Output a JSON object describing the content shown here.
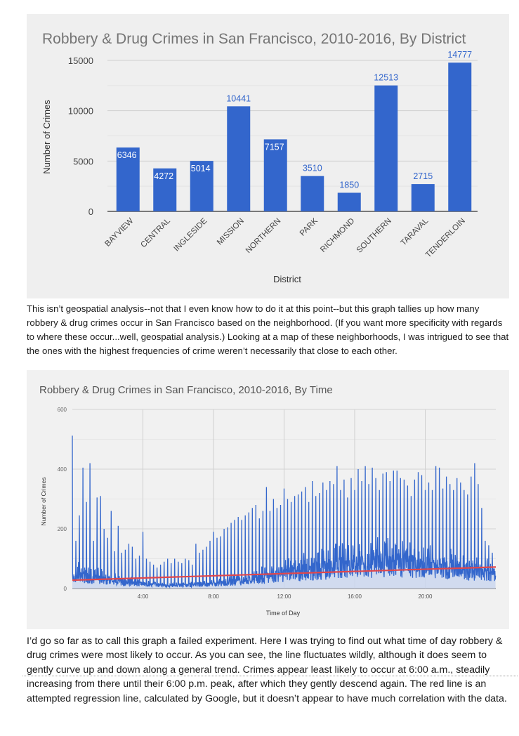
{
  "chart_data": [
    {
      "type": "bar",
      "title": "Robbery & Drug Crimes in San Francisco, 2010-2016, By District",
      "xlabel": "District",
      "ylabel": "Number of Crimes",
      "categories": [
        "BAYVIEW",
        "CENTRAL",
        "INGLESIDE",
        "MISSION",
        "NORTHERN",
        "PARK",
        "RICHMOND",
        "SOUTHERN",
        "TARAVAL",
        "TENDERLOIN"
      ],
      "values": [
        6346,
        4272,
        5014,
        10441,
        7157,
        3510,
        1850,
        12513,
        2715,
        14777
      ],
      "ylim": [
        0,
        15000
      ],
      "yticks": [
        "0",
        "5000",
        "10000",
        "15000"
      ],
      "grid": true,
      "bar_color": "#3366cc",
      "label_color_outside": "#3366cc",
      "label_color_inside": "#ffffff"
    },
    {
      "type": "line",
      "title": "Robbery & Drug Crimes in San Francisco, 2010-2016, By Time",
      "xlabel": "Time of Day",
      "ylabel": "Number of Crimes",
      "xticks": [
        "4:00",
        "8:00",
        "12:00",
        "16:00",
        "20:00"
      ],
      "yticks": [
        "0",
        "200",
        "400",
        "600"
      ],
      "ylim": [
        0,
        600
      ],
      "xlim_minutes": [
        0,
        1440
      ],
      "line_color": "#3366cc",
      "regression_color": "#e0474c",
      "regression": {
        "start": 28,
        "end": 72
      },
      "hourly_peaks": [
        {
          "hour": 0,
          "values": [
            512,
            160,
            245,
            405,
            290
          ]
        },
        {
          "hour": 1,
          "values": [
            420,
            160,
            305,
            310,
            200
          ]
        },
        {
          "hour": 2,
          "values": [
            170,
            260,
            125,
            210,
            120
          ]
        },
        {
          "hour": 3,
          "values": [
            130,
            150,
            140,
            100,
            110
          ]
        },
        {
          "hour": 4,
          "values": [
            190,
            100,
            90,
            80,
            70
          ]
        },
        {
          "hour": 5,
          "values": [
            80,
            90,
            100,
            85,
            100
          ]
        },
        {
          "hour": 6,
          "values": [
            90,
            85,
            100,
            95,
            80
          ]
        },
        {
          "hour": 7,
          "values": [
            150,
            120,
            130,
            140,
            160
          ]
        },
        {
          "hour": 8,
          "values": [
            190,
            170,
            175,
            200,
            205
          ]
        },
        {
          "hour": 9,
          "values": [
            220,
            230,
            240,
            230,
            245
          ]
        },
        {
          "hour": 10,
          "values": [
            255,
            270,
            280,
            235,
            260
          ]
        },
        {
          "hour": 11,
          "values": [
            340,
            260,
            300,
            270,
            280
          ]
        },
        {
          "hour": 12,
          "values": [
            335,
            300,
            290,
            310,
            315
          ]
        },
        {
          "hour": 13,
          "values": [
            325,
            340,
            290,
            360,
            310
          ]
        },
        {
          "hour": 14,
          "values": [
            320,
            355,
            330,
            360,
            350
          ]
        },
        {
          "hour": 15,
          "values": [
            410,
            330,
            365,
            305,
            370
          ]
        },
        {
          "hour": 16,
          "values": [
            330,
            400,
            360,
            410,
            350
          ]
        },
        {
          "hour": 17,
          "values": [
            405,
            370,
            330,
            385,
            390
          ]
        },
        {
          "hour": 18,
          "values": [
            360,
            395,
            395,
            370,
            365
          ]
        },
        {
          "hour": 19,
          "values": [
            345,
            310,
            365,
            390,
            380
          ]
        },
        {
          "hour": 20,
          "values": [
            330,
            355,
            330,
            410,
            405
          ]
        },
        {
          "hour": 21,
          "values": [
            335,
            375,
            350,
            330,
            370
          ]
        },
        {
          "hour": 22,
          "values": [
            355,
            330,
            315,
            375,
            420
          ]
        },
        {
          "hour": 23,
          "values": [
            350,
            270,
            160,
            145,
            120
          ]
        }
      ]
    }
  ],
  "text": {
    "para1": "This isn’t geospatial analysis--not that I even know how to do it at this point--but this graph tallies up how many robbery & drug crimes occur in San Francisco based on the neighborhood. (If you want more specificity with regards to where these occur...well, geospatial analysis.) Looking at a map of these neighborhoods, I was intrigued to see that the ones with the highest frequencies of crime weren’t necessarily that close to each other.",
    "para2": "I’d go so far as to call this graph a failed experiment. Here I was trying to find out what time of day robbery & drug crimes were most likely to occur. As you can see, the line fluctuates wildly, although it does seem to gently curve up and down along a general trend. Crimes appear least likely to occur at 6:00 a.m., steadily increasing from there until their 6:00 p.m. peak, after which they gently descend again. The red line is an attempted regression line, calculated by Google, but it doesn’t appear to have much correlation with the data."
  }
}
